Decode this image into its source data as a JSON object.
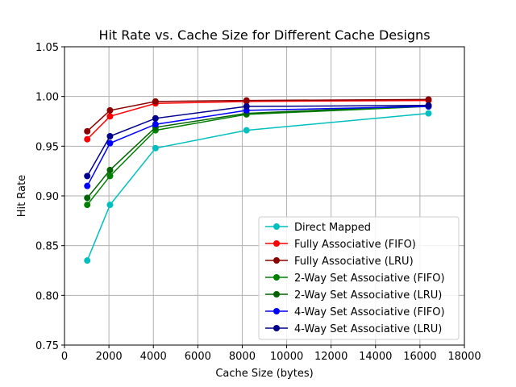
{
  "chart_data": {
    "type": "line",
    "title": "Hit Rate vs. Cache Size for Different Cache Designs",
    "xlabel": "Cache Size (bytes)",
    "ylabel": "Hit Rate",
    "xlim": [
      0,
      18000
    ],
    "ylim": [
      0.75,
      1.05
    ],
    "xticks": [
      0,
      2000,
      4000,
      6000,
      8000,
      10000,
      12000,
      14000,
      16000,
      18000
    ],
    "yticks": [
      0.75,
      0.8,
      0.85,
      0.9,
      0.95,
      1.0,
      1.05
    ],
    "xtick_labels": [
      "0",
      "2000",
      "4000",
      "6000",
      "8000",
      "10000",
      "12000",
      "14000",
      "16000",
      "18000"
    ],
    "ytick_labels": [
      "0.75",
      "0.80",
      "0.85",
      "0.90",
      "0.95",
      "1.00",
      "1.05"
    ],
    "grid": true,
    "legend_position": "lower-right",
    "x": [
      1024,
      2048,
      4096,
      8192,
      16384
    ],
    "series": [
      {
        "name": "Direct Mapped",
        "color": "#00bfbf",
        "values": [
          0.835,
          0.891,
          0.948,
          0.966,
          0.983
        ]
      },
      {
        "name": "Fully Associative (FIFO)",
        "color": "#ff0000",
        "values": [
          0.957,
          0.98,
          0.993,
          0.995,
          0.996
        ]
      },
      {
        "name": "Fully Associative (LRU)",
        "color": "#8b0000",
        "values": [
          0.965,
          0.986,
          0.995,
          0.996,
          0.997
        ]
      },
      {
        "name": "2-Way Set Associative (FIFO)",
        "color": "#008000",
        "values": [
          0.891,
          0.92,
          0.966,
          0.982,
          0.99
        ]
      },
      {
        "name": "2-Way Set Associative (LRU)",
        "color": "#006400",
        "values": [
          0.898,
          0.926,
          0.969,
          0.983,
          0.991
        ]
      },
      {
        "name": "4-Way Set Associative (FIFO)",
        "color": "#0000ff",
        "values": [
          0.91,
          0.953,
          0.972,
          0.986,
          0.99
        ]
      },
      {
        "name": "4-Way Set Associative (LRU)",
        "color": "#00008b",
        "values": [
          0.92,
          0.96,
          0.978,
          0.99,
          0.991
        ]
      }
    ]
  }
}
